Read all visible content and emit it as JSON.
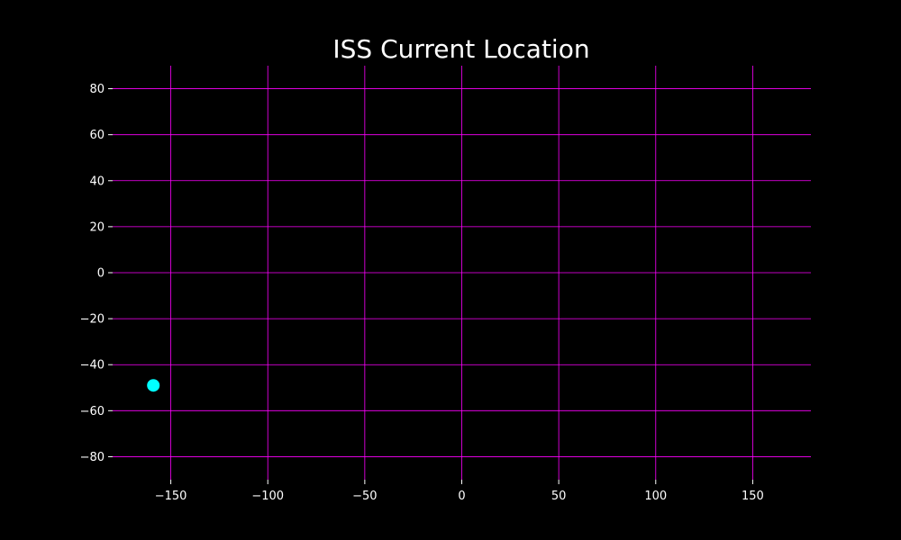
{
  "chart_data": {
    "type": "scatter",
    "title": "ISS Current Location",
    "xlabel": "",
    "ylabel": "",
    "xlim": [
      -180,
      180
    ],
    "ylim": [
      -90,
      90
    ],
    "x_ticks": [
      -150,
      -100,
      -50,
      0,
      50,
      100,
      150
    ],
    "y_ticks": [
      80,
      60,
      40,
      20,
      0,
      -20,
      -40,
      -60,
      -80
    ],
    "x_tick_labels": [
      "−150",
      "−100",
      "−50",
      "0",
      "50",
      "100",
      "150"
    ],
    "y_tick_labels": [
      "80",
      "60",
      "40",
      "20",
      "0",
      "−20",
      "−40",
      "−60",
      "−80"
    ],
    "grid": true,
    "series": [
      {
        "points": [
          {
            "x": -159,
            "y": -49
          }
        ]
      }
    ],
    "colors": {
      "background": "#000000",
      "grid": "#ff00ff",
      "point": "#00ffff",
      "text": "#ffffff"
    }
  }
}
